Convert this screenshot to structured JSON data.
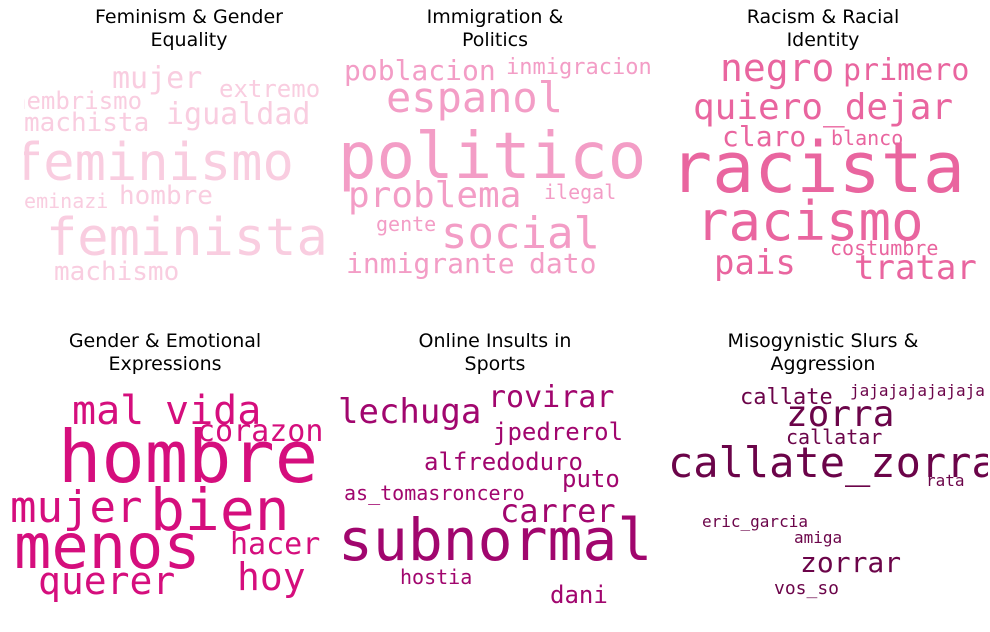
{
  "chart_data": [
    {
      "type": "wordcloud",
      "title": "Feminism & Gender\nEquality",
      "color": "#f9cde0",
      "words": [
        "feminismo",
        "feminista",
        "mujer",
        "igualdad",
        "machista",
        "hembrismo",
        "extremo",
        "hombre",
        "feminazi",
        "machismo"
      ]
    },
    {
      "type": "wordcloud",
      "title": "Immigration &\nPolitics",
      "color": "#f39dc6",
      "words": [
        "politico",
        "espanol",
        "poblacion",
        "inmigracion",
        "problema",
        "ilegal",
        "social",
        "gente",
        "inmigrante",
        "dato"
      ]
    },
    {
      "type": "wordcloud",
      "title": "Racism & Racial\nIdentity",
      "color": "#e9659f",
      "words": [
        "racista",
        "racismo",
        "negro",
        "primero",
        "quiero_dejar",
        "claro",
        "blanco",
        "pais",
        "costumbre",
        "tratar"
      ]
    },
    {
      "type": "wordcloud",
      "title": "Gender & Emotional\nExpressions",
      "color": "#d50e7d",
      "words": [
        "hombre",
        "menos",
        "bien",
        "mal",
        "vida",
        "corazon",
        "mujer",
        "hacer",
        "hoy",
        "querer"
      ]
    },
    {
      "type": "wordcloud",
      "title": "Online Insults in\nSports",
      "color": "#a1066e",
      "words": [
        "subnormal",
        "lechuga",
        "rovirar",
        "jpedrerol",
        "alfredoduro",
        "puto",
        "as_tomasroncero",
        "carrer",
        "hostia",
        "dani"
      ]
    },
    {
      "type": "wordcloud",
      "title": "Misogynistic Slurs &\nAggression",
      "color": "#6b0449",
      "words": [
        "callate_zorra",
        "zorra",
        "callate",
        "jajajajajajaja",
        "callatar",
        "rata",
        "eric_garcia",
        "amiga",
        "zorrar",
        "vos_so"
      ]
    }
  ]
}
